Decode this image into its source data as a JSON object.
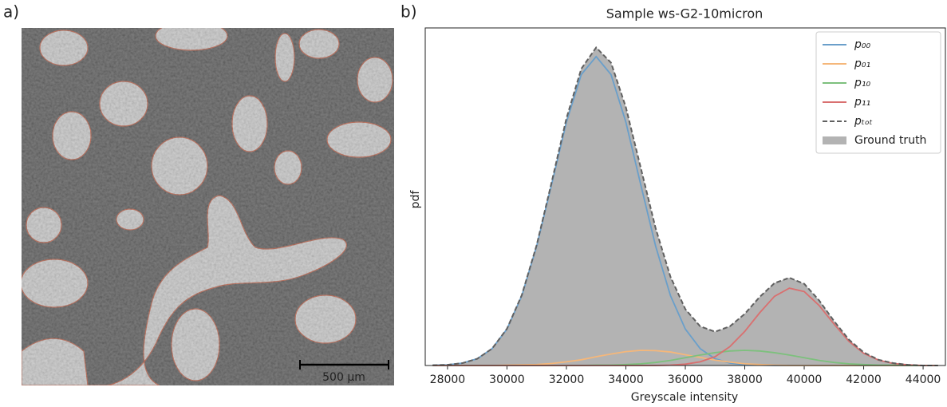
{
  "panel_labels": [
    "a)",
    "b)"
  ],
  "image": {
    "scale_bar": "500 µm"
  },
  "chart_data": {
    "type": "line",
    "title": "Sample ws-G2-10micron",
    "x_label": "Greyscale intensity",
    "y_label": "pdf",
    "x": [
      27500,
      28000,
      28500,
      29000,
      29500,
      30000,
      30500,
      31000,
      31500,
      32000,
      32500,
      33000,
      33500,
      34000,
      34500,
      35000,
      35500,
      36000,
      36500,
      37000,
      37500,
      38000,
      38500,
      39000,
      39500,
      40000,
      40500,
      41000,
      41500,
      42000,
      42500,
      43000,
      43500,
      44000,
      44500
    ],
    "xlim": [
      27250,
      44750
    ],
    "xticks": [
      28000,
      30000,
      32000,
      34000,
      36000,
      38000,
      40000,
      42000,
      44000
    ],
    "ylim": [
      0,
      1
    ],
    "legend": "upper right",
    "series": [
      {
        "name": "p₀₀",
        "color": "#6a9fca",
        "values": [
          0.001,
          0.002,
          0.007,
          0.02,
          0.05,
          0.108,
          0.207,
          0.354,
          0.536,
          0.721,
          0.862,
          0.915,
          0.862,
          0.721,
          0.536,
          0.354,
          0.207,
          0.108,
          0.05,
          0.02,
          0.007,
          0.002,
          0.001,
          0,
          0,
          0,
          0,
          0,
          0,
          0,
          0,
          0,
          0,
          0,
          0
        ]
      },
      {
        "name": "p₀₁",
        "color": "#f5b77a",
        "values": [
          0,
          0,
          0,
          0,
          0,
          0.001,
          0.002,
          0.003,
          0.006,
          0.011,
          0.017,
          0.026,
          0.034,
          0.041,
          0.045,
          0.044,
          0.04,
          0.032,
          0.024,
          0.016,
          0.01,
          0.005,
          0.003,
          0.001,
          0,
          0,
          0,
          0,
          0,
          0,
          0,
          0,
          0,
          0,
          0
        ]
      },
      {
        "name": "p₁₀",
        "color": "#7dc07d",
        "values": [
          0,
          0,
          0,
          0,
          0,
          0,
          0,
          0,
          0,
          0,
          0,
          0.001,
          0.001,
          0.003,
          0.005,
          0.009,
          0.015,
          0.023,
          0.031,
          0.038,
          0.043,
          0.045,
          0.043,
          0.038,
          0.031,
          0.023,
          0.015,
          0.009,
          0.005,
          0.003,
          0.001,
          0.001,
          0,
          0,
          0
        ]
      },
      {
        "name": "p₁₁",
        "color": "#d97070",
        "values": [
          0,
          0,
          0,
          0,
          0,
          0,
          0,
          0,
          0,
          0,
          0,
          0,
          0,
          0,
          0,
          0,
          0.001,
          0.004,
          0.011,
          0.026,
          0.056,
          0.101,
          0.156,
          0.205,
          0.229,
          0.219,
          0.178,
          0.123,
          0.072,
          0.036,
          0.016,
          0.006,
          0.002,
          0,
          0
        ]
      },
      {
        "name": "pₜₒₜ",
        "color": "#606060",
        "dashed": true,
        "values": [
          0.001,
          0.002,
          0.007,
          0.02,
          0.05,
          0.109,
          0.209,
          0.357,
          0.542,
          0.732,
          0.879,
          0.942,
          0.897,
          0.765,
          0.586,
          0.407,
          0.263,
          0.167,
          0.116,
          0.1,
          0.116,
          0.153,
          0.203,
          0.244,
          0.26,
          0.242,
          0.193,
          0.132,
          0.077,
          0.039,
          0.017,
          0.007,
          0.002,
          0,
          0
        ]
      },
      {
        "name": "Ground truth",
        "color": "#b3b3b3",
        "filled": true,
        "values": [
          0.001,
          0.002,
          0.007,
          0.02,
          0.05,
          0.109,
          0.209,
          0.357,
          0.542,
          0.732,
          0.879,
          0.942,
          0.897,
          0.765,
          0.586,
          0.407,
          0.263,
          0.167,
          0.116,
          0.1,
          0.116,
          0.153,
          0.203,
          0.244,
          0.26,
          0.242,
          0.193,
          0.132,
          0.077,
          0.039,
          0.017,
          0.007,
          0.002,
          0,
          0
        ]
      }
    ]
  }
}
